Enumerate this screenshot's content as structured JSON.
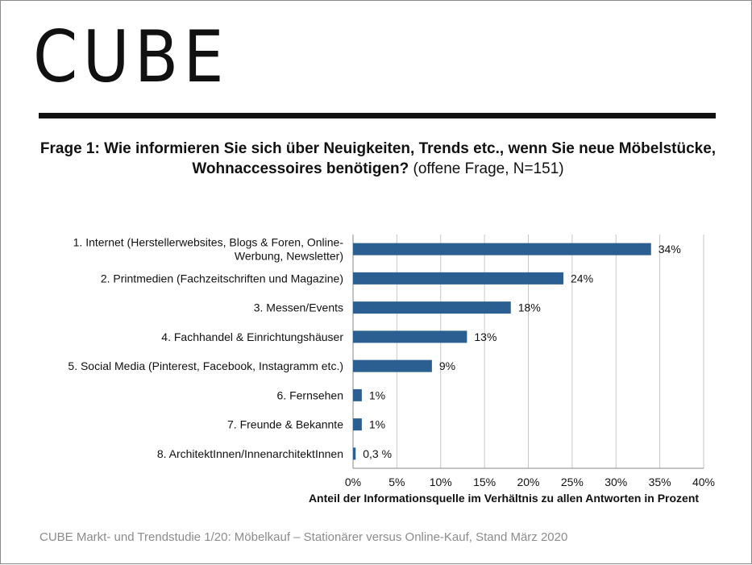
{
  "logo": "CUBE",
  "question": {
    "bold": "Frage 1: Wie informieren Sie sich über Neuigkeiten, Trends etc., wenn Sie neue Möbelstücke, Wohnaccessoires benötigen?",
    "normal": " (offene Frage, N=151)"
  },
  "footer": "CUBE Markt- und Trendstudie 1/20: Möbelkauf – Stationärer versus Online-Kauf, Stand März 2020",
  "colors": {
    "bar": "#2c5f91",
    "grid": "#c6c6c6",
    "text": "#111111",
    "footer": "#8c8c8c"
  },
  "chart_data": {
    "type": "bar",
    "orientation": "horizontal",
    "categories": [
      [
        "1. Internet (Herstellerwebsites, Blogs & Foren, Online-",
        "Werbung, Newsletter)"
      ],
      [
        "2. Printmedien (Fachzeitschriften und Magazine)"
      ],
      [
        "3. Messen/Events"
      ],
      [
        "4. Fachhandel & Einrichtungshäuser"
      ],
      [
        "5. Social Media (Pinterest, Facebook, Instagramm etc.)"
      ],
      [
        "6. Fernsehen"
      ],
      [
        "7. Freunde & Bekannte"
      ],
      [
        "8. ArchitektInnen/InnenarchitektInnen"
      ]
    ],
    "values": [
      34,
      24,
      18,
      13,
      9,
      1,
      1,
      0.3
    ],
    "data_labels": [
      "34%",
      "24%",
      "18%",
      "13%",
      "9%",
      "1%",
      "1%",
      "0,3 %"
    ],
    "xlim": [
      0,
      40
    ],
    "xticks": [
      0,
      5,
      10,
      15,
      20,
      25,
      30,
      35,
      40
    ],
    "xtick_labels": [
      "0%",
      "5%",
      "10%",
      "15%",
      "20%",
      "25%",
      "30%",
      "35%",
      "40%"
    ],
    "xlabel": "Anteil der Informationsquelle im Verhältnis zu allen Antworten in Prozent",
    "grid": true
  }
}
